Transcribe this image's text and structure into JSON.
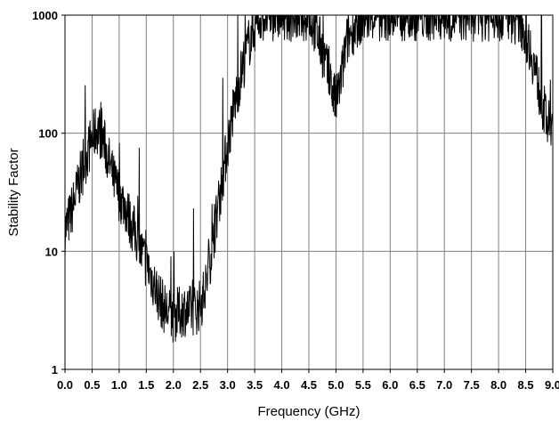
{
  "chart_data": {
    "type": "line",
    "title": "",
    "xlabel": "Frequency (GHz)",
    "ylabel": "Stability Factor",
    "xlim": [
      0.0,
      9.0
    ],
    "ylim": [
      1,
      1000
    ],
    "y_scale": "log",
    "grid": true,
    "legend": "none",
    "x_ticks": [
      "0.0",
      "0.5",
      "1.0",
      "1.5",
      "2.0",
      "2.5",
      "3.0",
      "3.5",
      "4.0",
      "4.5",
      "5.0",
      "5.5",
      "6.0",
      "6.5",
      "7.0",
      "7.5",
      "8.0",
      "8.5",
      "9.0"
    ],
    "y_ticks": [
      "1",
      "10",
      "100",
      "1000"
    ],
    "colors": {
      "line": "#000000",
      "grid": "#808080",
      "axis": "#000000"
    },
    "series": [
      {
        "x": [
          0.0,
          0.1,
          0.2,
          0.3,
          0.4,
          0.5,
          0.6,
          0.7,
          0.8,
          0.9,
          1.0,
          1.1,
          1.2,
          1.3,
          1.4,
          1.5,
          1.6,
          1.7,
          1.8,
          1.9,
          2.0,
          2.1,
          2.2,
          2.3,
          2.4,
          2.5,
          2.6,
          2.7,
          2.8,
          2.9,
          3.0,
          3.1,
          3.2,
          3.3,
          3.4,
          3.5,
          3.6,
          3.7,
          3.8,
          3.9,
          4.0,
          4.2,
          4.4,
          4.5,
          4.6,
          4.7,
          4.8,
          4.9,
          5.0,
          5.1,
          5.2,
          5.4,
          5.6,
          5.8,
          6.0,
          6.2,
          6.4,
          6.6,
          6.8,
          7.0,
          7.2,
          7.4,
          7.6,
          7.8,
          8.0,
          8.2,
          8.4,
          8.5,
          8.6,
          8.7,
          8.8,
          8.9,
          9.0
        ],
        "values": [
          15,
          20,
          30,
          45,
          65,
          90,
          110,
          90,
          60,
          40,
          30,
          25,
          18,
          14,
          10,
          8,
          6,
          4.5,
          3.5,
          3,
          2.8,
          3,
          3.2,
          3.1,
          3.2,
          3.5,
          5,
          10,
          20,
          40,
          80,
          150,
          250,
          400,
          600,
          800,
          950,
          1000,
          1000,
          1000,
          1000,
          1000,
          1000,
          1000,
          800,
          600,
          400,
          250,
          180,
          300,
          600,
          900,
          1000,
          1000,
          1000,
          1000,
          1000,
          1000,
          1000,
          1000,
          1000,
          1000,
          1000,
          1000,
          1000,
          1000,
          900,
          700,
          500,
          300,
          180,
          120,
          100
        ]
      }
    ]
  }
}
